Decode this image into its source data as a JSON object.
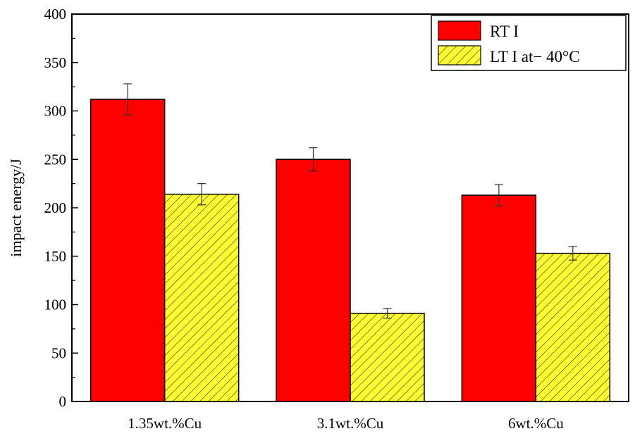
{
  "chart_data": {
    "type": "bar",
    "categories": [
      "1.35wt.%Cu",
      "3.1wt.%Cu",
      "6wt.%Cu"
    ],
    "series": [
      {
        "name": "RT I",
        "values": [
          312,
          250,
          213
        ],
        "errors": [
          16,
          12,
          11
        ],
        "color": "#ff0000",
        "pattern": "solid"
      },
      {
        "name": "LT I at− 40°C",
        "values": [
          214,
          91,
          153
        ],
        "errors": [
          11,
          5,
          7
        ],
        "color": "#ffff33",
        "pattern": "diagonal-hatch"
      }
    ],
    "title": "",
    "xlabel": "",
    "ylabel": "impact energy/J",
    "ylim": [
      0,
      400
    ],
    "yticks": [
      0,
      50,
      100,
      150,
      200,
      250,
      300,
      350,
      400
    ],
    "grid": false,
    "legend_position": "top-right"
  }
}
